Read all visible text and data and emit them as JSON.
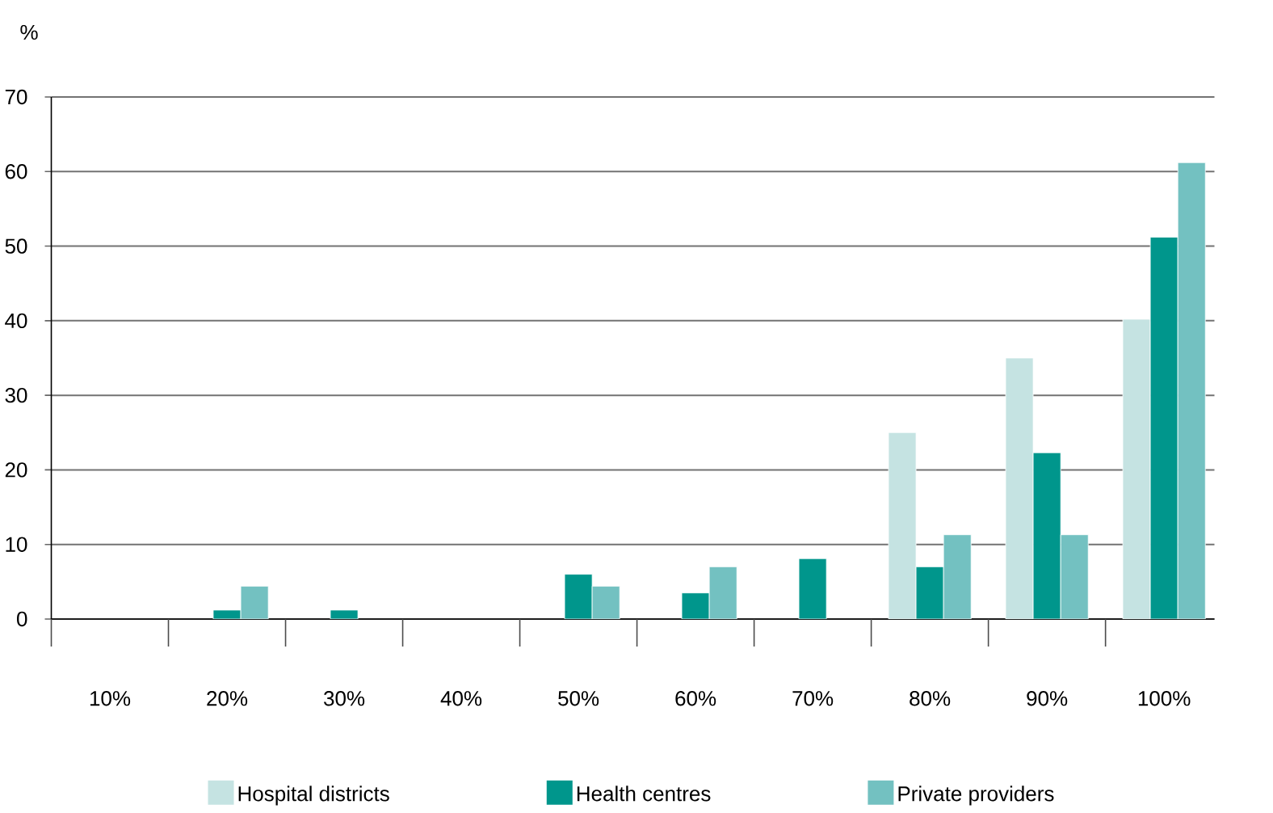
{
  "chart_data": {
    "type": "bar",
    "ylabel": "%",
    "categories": [
      "10%",
      "20%",
      "30%",
      "40%",
      "50%",
      "60%",
      "70%",
      "80%",
      "90%",
      "100%"
    ],
    "series": [
      {
        "name": "Hospital districts",
        "color": "#c5e3e2",
        "values": [
          null,
          null,
          null,
          null,
          null,
          null,
          null,
          25,
          35,
          40.2
        ]
      },
      {
        "name": "Health centres",
        "color": "#00968c",
        "values": [
          null,
          1.2,
          1.2,
          null,
          6.0,
          3.5,
          8.1,
          7.0,
          22.3,
          51.2
        ]
      },
      {
        "name": "Private providers",
        "color": "#73c1c1",
        "values": [
          null,
          4.4,
          null,
          null,
          4.4,
          7.0,
          null,
          11.3,
          11.3,
          61.2
        ]
      }
    ],
    "ylim": [
      0,
      70
    ],
    "yticks": [
      0,
      10,
      20,
      30,
      40,
      50,
      60,
      70
    ],
    "grid": "y",
    "legend": "bottom"
  }
}
